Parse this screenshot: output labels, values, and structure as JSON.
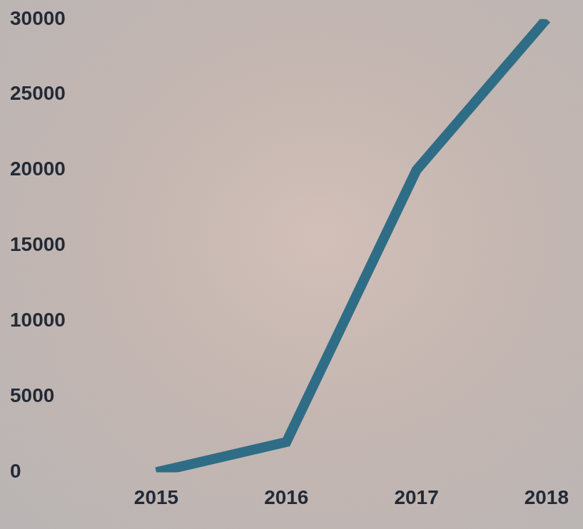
{
  "chart_data": {
    "type": "line",
    "categories": [
      "2015",
      "2016",
      "2017",
      "2018"
    ],
    "values": [
      0,
      2000,
      20000,
      30000
    ],
    "color": "#2f6d86",
    "ylim": [
      0,
      30000
    ],
    "yticks": [
      0,
      5000,
      10000,
      15000,
      20000,
      25000,
      30000
    ],
    "grid": false
  }
}
